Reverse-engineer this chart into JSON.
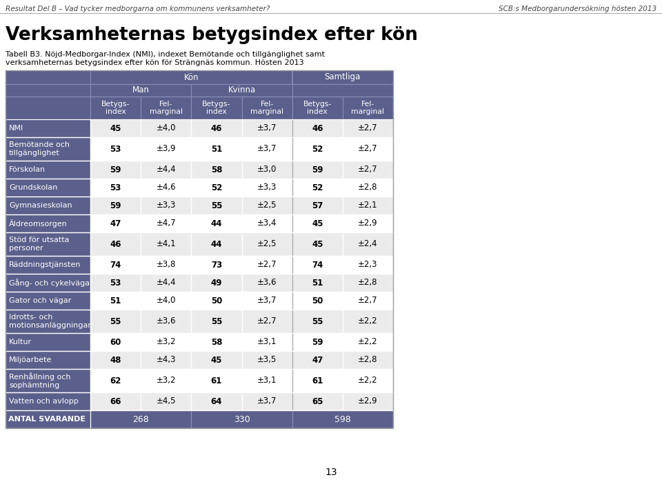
{
  "header_top_left": "Resultat Del B – Vad tycker medborgarna om kommunens verksamheter?",
  "header_top_right": "SCB:s Medborgarundersökning hösten 2013",
  "title": "Verksamheternas betygsindex efter kön",
  "subtitle_line1": "Tabell B3. Nöjd-Medborgar-Index (NMI), indexet Bemötande och tillgänglighet samt",
  "subtitle_line2": "verksamheternas betygsindex efter kön för Strängnäs kommun. Hösten 2013",
  "col_headers": [
    "Betygs-\nindex",
    "Fel-\nmarginal",
    "Betygs-\nindex",
    "Fel-\nmarginal",
    "Betygs-\nindex",
    "Fel-\nmarginal"
  ],
  "row_labels_fixed": [
    "NMI",
    "Bemötande och\ntillgänglighet",
    "Förskolan",
    "Grundskolan",
    "Gymnasieskolan",
    "Äldreomsorgen",
    "Stöd för utsatta\npersoner",
    "Räddningstjänsten",
    "Gång- och cykelvägar",
    "Gator och vägar",
    "Idrotts- och\nmotionsanläggningar",
    "Kultur",
    "Miljöarbete",
    "Renhållning och\nsophämtning",
    "Vatten och avlopp",
    "ANTAL SVARANDE"
  ],
  "table_data": [
    [
      "45",
      "±4,0",
      "46",
      "±3,7",
      "46",
      "±2,7"
    ],
    [
      "53",
      "±3,9",
      "51",
      "±3,7",
      "52",
      "±2,7"
    ],
    [
      "59",
      "±4,4",
      "58",
      "±3,0",
      "59",
      "±2,7"
    ],
    [
      "53",
      "±4,6",
      "52",
      "±3,3",
      "52",
      "±2,8"
    ],
    [
      "59",
      "±3,3",
      "55",
      "±2,5",
      "57",
      "±2,1"
    ],
    [
      "47",
      "±4,7",
      "44",
      "±3,4",
      "45",
      "±2,9"
    ],
    [
      "46",
      "±4,1",
      "44",
      "±2,5",
      "45",
      "±2,4"
    ],
    [
      "74",
      "±3,8",
      "73",
      "±2,7",
      "74",
      "±2,3"
    ],
    [
      "53",
      "±4,4",
      "49",
      "±3,6",
      "51",
      "±2,8"
    ],
    [
      "51",
      "±4,0",
      "50",
      "±3,7",
      "50",
      "±2,7"
    ],
    [
      "55",
      "±3,6",
      "55",
      "±2,7",
      "55",
      "±2,2"
    ],
    [
      "60",
      "±3,2",
      "58",
      "±3,1",
      "59",
      "±2,2"
    ],
    [
      "48",
      "±4,3",
      "45",
      "±3,5",
      "47",
      "±2,8"
    ],
    [
      "62",
      "±3,2",
      "61",
      "±3,1",
      "61",
      "±2,2"
    ],
    [
      "66",
      "±4,5",
      "64",
      "±3,7",
      "65",
      "±2,9"
    ],
    [
      "268",
      "",
      "330",
      "",
      "598",
      ""
    ]
  ],
  "header_bg": "#5b5f8b",
  "header_text": "#ffffff",
  "page_number": "13"
}
